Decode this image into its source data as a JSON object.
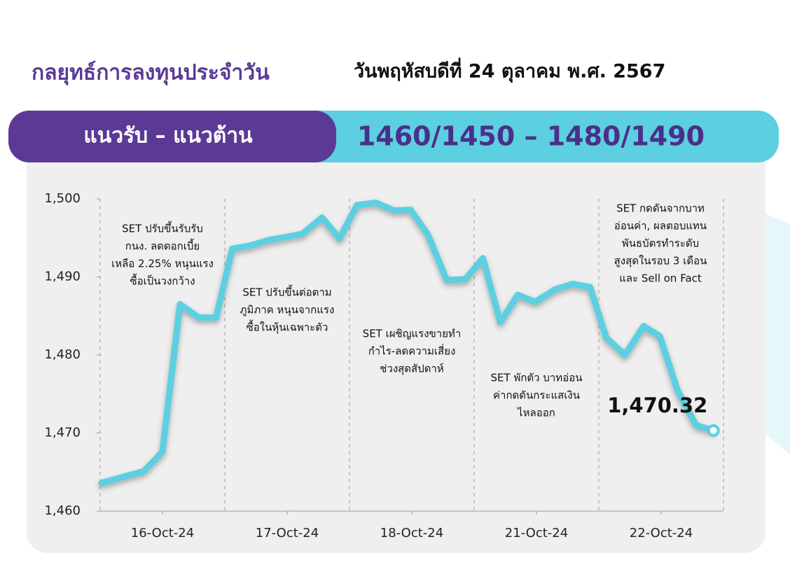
{
  "header": {
    "title": "กลยุทธ์การลงทุนประจำวัน",
    "date": "วันพฤหัสบดีที่ 24 ตุลาคม พ.ศ. 2567"
  },
  "banner": {
    "label": "แนวรับ – แนวต้าน",
    "levels": "1460/1450 – 1480/1490"
  },
  "chart_data": {
    "type": "line",
    "color": "#5ccfe0",
    "x": [
      0.01,
      0.21,
      0.35,
      0.5,
      0.64,
      0.79,
      0.93,
      1.06,
      1.2,
      1.35,
      1.62,
      1.78,
      1.92,
      2.06,
      2.21,
      2.36,
      2.49,
      2.63,
      2.78,
      2.93,
      3.07,
      3.21,
      3.35,
      3.49,
      3.65,
      3.79,
      3.93,
      4.06,
      4.21,
      4.36,
      4.49,
      4.63,
      4.78,
      4.92
    ],
    "values": [
      1463.6,
      1464.5,
      1465.1,
      1467.6,
      1486.5,
      1484.8,
      1484.8,
      1493.6,
      1494.0,
      1494.7,
      1495.5,
      1497.6,
      1494.9,
      1499.2,
      1499.5,
      1498.5,
      1498.6,
      1495.4,
      1489.6,
      1489.7,
      1492.4,
      1484.2,
      1487.7,
      1486.8,
      1488.4,
      1489.1,
      1488.7,
      1482.2,
      1480.0,
      1483.7,
      1482.4,
      1475.5,
      1471.0,
      1470.32
    ],
    "value_labels": [
      null,
      null,
      null,
      null,
      null,
      null,
      null,
      null,
      null,
      null,
      null,
      null,
      null,
      null,
      null,
      null,
      null,
      null,
      null,
      null,
      null,
      null,
      null,
      null,
      null,
      null,
      null,
      null,
      null,
      null,
      null,
      null,
      null,
      "1,470.32"
    ],
    "xlim": [
      0,
      5
    ],
    "xticks": [
      {
        "value": 0.5,
        "label": "16-Oct-24"
      },
      {
        "value": 1.5,
        "label": "17-Oct-24"
      },
      {
        "value": 2.5,
        "label": "18-Oct-24"
      },
      {
        "value": 3.5,
        "label": "21-Oct-24"
      },
      {
        "value": 4.5,
        "label": "22-Oct-24"
      }
    ],
    "ylim": [
      1460,
      1500
    ],
    "yticks": [
      {
        "value": 1460,
        "label": "1,460"
      },
      {
        "value": 1470,
        "label": "1,470"
      },
      {
        "value": 1480,
        "label": "1,480"
      },
      {
        "value": 1490,
        "label": "1,490"
      },
      {
        "value": 1500,
        "label": "1,500"
      }
    ],
    "annotations": [
      [
        "SET ปรับขึ้นรับรับ",
        "กนง. ลดดอกเบี้ย",
        "เหลือ 2.25% หนุนแรง",
        "ซื้อเป็นวงกว้าง"
      ],
      [
        "SET ปรับขึ้นต่อตาม",
        "ภูมิภาค หนุนจากแรง",
        "ซื้อในหุ้นเฉพาะตัว"
      ],
      [
        "SET เผชิญแรงขายทำ",
        "กำไร-ลดความเสี่ยง",
        "ช่วงสุดสัปดาห์"
      ],
      [
        "SET พักตัว บาทอ่อน",
        "ค่ากดดันกระแสเงิน",
        "ไหลออก"
      ],
      [
        "SET กดดันจากบาท",
        "อ่อนค่า, ผลตอบแทน",
        "พันธบัตรทำระดับ",
        "สูงสุดในรอบ 3 เดือน",
        "และ Sell on Fact"
      ]
    ]
  }
}
